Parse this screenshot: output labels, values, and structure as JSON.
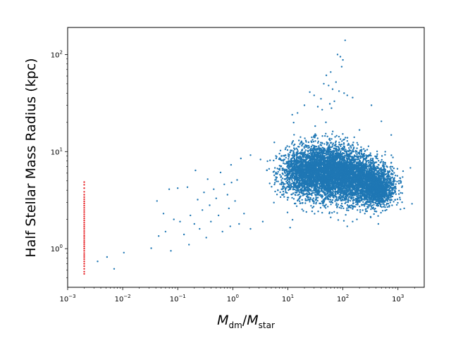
{
  "chart_data": {
    "type": "scatter",
    "xlabel": "M_dm/M_star",
    "ylabel": "Half Stellar Mass Radius (kpc)",
    "xscale": "log",
    "yscale": "log",
    "xlim": [
      0.001,
      3000
    ],
    "ylim": [
      0.4,
      190
    ],
    "grid": false,
    "legend": "none",
    "x_ticks": [
      {
        "value": 0.001,
        "base": "10",
        "exp": "−3"
      },
      {
        "value": 0.01,
        "base": "10",
        "exp": "−2"
      },
      {
        "value": 0.1,
        "base": "10",
        "exp": "−1"
      },
      {
        "value": 1,
        "base": "10",
        "exp": "0"
      },
      {
        "value": 10,
        "base": "10",
        "exp": "1"
      },
      {
        "value": 100,
        "base": "10",
        "exp": "2"
      },
      {
        "value": 1000,
        "base": "10",
        "exp": "3"
      }
    ],
    "y_ticks": [
      {
        "value": 1,
        "base": "10",
        "exp": "0"
      },
      {
        "value": 10,
        "base": "10",
        "exp": "1"
      },
      {
        "value": 100,
        "base": "10",
        "exp": "2"
      }
    ],
    "series": [
      {
        "color": "#1f77b4",
        "marker_size": 1.2,
        "points": [
          [
            0.0035,
            0.74
          ],
          [
            0.0052,
            0.82
          ],
          [
            0.007,
            0.62
          ],
          [
            0.0105,
            0.91
          ],
          [
            0.033,
            1.01
          ],
          [
            0.042,
            3.1
          ],
          [
            0.045,
            1.35
          ],
          [
            0.055,
            2.3
          ],
          [
            0.06,
            1.5
          ],
          [
            0.07,
            4.1
          ],
          [
            0.075,
            0.95
          ],
          [
            0.085,
            2.0
          ],
          [
            0.1,
            4.2
          ],
          [
            0.11,
            1.9
          ],
          [
            0.13,
            1.4
          ],
          [
            0.15,
            4.3
          ],
          [
            0.16,
            1.1
          ],
          [
            0.17,
            2.2
          ],
          [
            0.2,
            1.8
          ],
          [
            0.21,
            6.4
          ],
          [
            0.23,
            3.2
          ],
          [
            0.25,
            1.6
          ],
          [
            0.28,
            2.5
          ],
          [
            0.3,
            3.8
          ],
          [
            0.33,
            1.3
          ],
          [
            0.35,
            5.2
          ],
          [
            0.38,
            2.8
          ],
          [
            0.4,
            1.9
          ],
          [
            0.45,
            4.1
          ],
          [
            0.5,
            3.3
          ],
          [
            0.55,
            2.2
          ],
          [
            0.6,
            6.1
          ],
          [
            0.65,
            1.5
          ],
          [
            0.7,
            4.6
          ],
          [
            0.8,
            3.6
          ],
          [
            0.85,
            2.6
          ],
          [
            0.9,
            1.7
          ],
          [
            1.1,
            3.1
          ],
          [
            1.3,
            1.8
          ],
          [
            1.6,
            2.3
          ],
          [
            2.1,
            1.6
          ],
          [
            3.5,
            1.9
          ],
          [
            11,
            1.65
          ],
          [
            120,
            1.7
          ],
          [
            440,
            1.8
          ],
          [
            0.93,
            7.3
          ],
          [
            1.4,
            8.5
          ],
          [
            2.1,
            9.2
          ],
          [
            1.2,
            5.1
          ],
          [
            0.95,
            4.8
          ],
          [
            25,
            41
          ],
          [
            30,
            38
          ],
          [
            40,
            35
          ],
          [
            45,
            50
          ],
          [
            50,
            61
          ],
          [
            55,
            48
          ],
          [
            60,
            66
          ],
          [
            65,
            44
          ],
          [
            70,
            33
          ],
          [
            75,
            52
          ],
          [
            20,
            30
          ],
          [
            35,
            29
          ],
          [
            42,
            27
          ],
          [
            58,
            31
          ],
          [
            62,
            28
          ],
          [
            80,
            100
          ],
          [
            90,
            95
          ],
          [
            100,
            88
          ],
          [
            110,
            140
          ],
          [
            95,
            75
          ],
          [
            85,
            42
          ],
          [
            105,
            40
          ],
          [
            120,
            38
          ],
          [
            150,
            36
          ],
          [
            330,
            30
          ],
          [
            500,
            20.5
          ],
          [
            15,
            25
          ],
          [
            12,
            24
          ],
          [
            1100,
            5.3
          ],
          [
            1200,
            4.4
          ],
          [
            1800,
            2.9
          ],
          [
            1300,
            2.6
          ],
          [
            250,
            2.3
          ],
          [
            320,
            2.1
          ],
          [
            150,
            1.9
          ],
          [
            180,
            2.0
          ],
          [
            60,
            2.1
          ]
        ],
        "cloud": [
          {
            "cx": 1.2,
            "cy": 0.78,
            "sx": 0.2,
            "sy": 0.12,
            "n": 900
          },
          {
            "cx": 1.6,
            "cy": 0.8,
            "sx": 0.25,
            "sy": 0.14,
            "n": 2200
          },
          {
            "cx": 2.0,
            "cy": 0.76,
            "sx": 0.25,
            "sy": 0.14,
            "n": 1800
          },
          {
            "cx": 2.4,
            "cy": 0.7,
            "sx": 0.25,
            "sy": 0.11,
            "n": 1600
          },
          {
            "cx": 2.65,
            "cy": 0.6,
            "sx": 0.14,
            "sy": 0.09,
            "n": 800
          }
        ]
      },
      {
        "color": "#e8262a",
        "marker_size": 1.2,
        "points": [
          [
            0.002,
            0.55
          ],
          [
            0.002,
            0.58
          ],
          [
            0.002,
            0.62
          ],
          [
            0.002,
            0.66
          ],
          [
            0.002,
            0.7
          ],
          [
            0.002,
            0.74
          ],
          [
            0.002,
            0.78
          ],
          [
            0.002,
            0.82
          ],
          [
            0.002,
            0.86
          ],
          [
            0.002,
            0.9
          ],
          [
            0.002,
            0.95
          ],
          [
            0.002,
            1.0
          ],
          [
            0.002,
            1.05
          ],
          [
            0.002,
            1.1
          ],
          [
            0.002,
            1.15
          ],
          [
            0.002,
            1.2
          ],
          [
            0.002,
            1.26
          ],
          [
            0.002,
            1.32
          ],
          [
            0.002,
            1.38
          ],
          [
            0.002,
            1.45
          ],
          [
            0.002,
            1.52
          ],
          [
            0.002,
            1.6
          ],
          [
            0.002,
            1.68
          ],
          [
            0.002,
            1.76
          ],
          [
            0.002,
            1.85
          ],
          [
            0.002,
            1.95
          ],
          [
            0.002,
            2.05
          ],
          [
            0.002,
            2.15
          ],
          [
            0.002,
            2.26
          ],
          [
            0.002,
            2.38
          ],
          [
            0.002,
            2.5
          ],
          [
            0.002,
            2.63
          ],
          [
            0.002,
            2.77
          ],
          [
            0.002,
            2.92
          ],
          [
            0.002,
            3.07
          ],
          [
            0.002,
            3.23
          ],
          [
            0.002,
            3.4
          ],
          [
            0.002,
            3.6
          ],
          [
            0.002,
            3.85
          ],
          [
            0.002,
            4.2
          ],
          [
            0.002,
            4.55
          ],
          [
            0.002,
            4.85
          ]
        ]
      }
    ]
  }
}
